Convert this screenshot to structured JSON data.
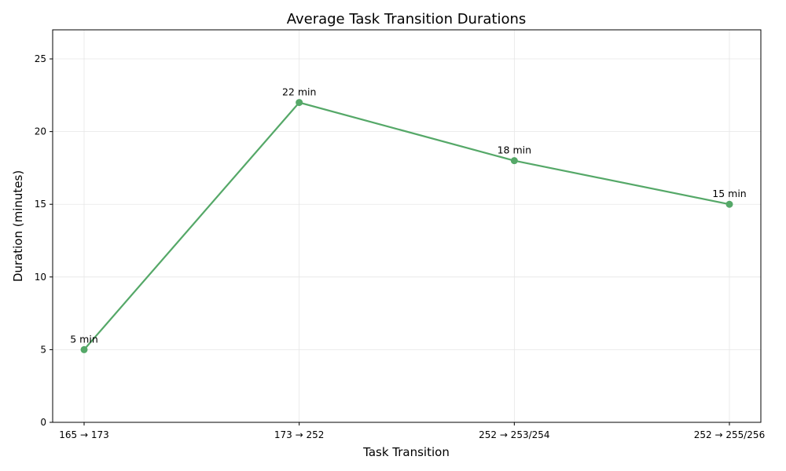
{
  "chart_data": {
    "type": "line",
    "title": "Average Task Transition Durations",
    "xlabel": "Task Transition",
    "ylabel": "Duration (minutes)",
    "categories": [
      "165 → 173",
      "173 → 252",
      "252 → 253/254",
      "252 → 255/256"
    ],
    "series": [
      {
        "values": [
          5,
          22,
          18,
          15
        ],
        "labels": [
          "5 min",
          "22 min",
          "18 min",
          "15 min"
        ],
        "color": "#55a868"
      }
    ],
    "ylim": [
      0,
      27
    ],
    "yticks": [
      0,
      5,
      10,
      15,
      20,
      25
    ],
    "grid": true,
    "legend": false
  }
}
